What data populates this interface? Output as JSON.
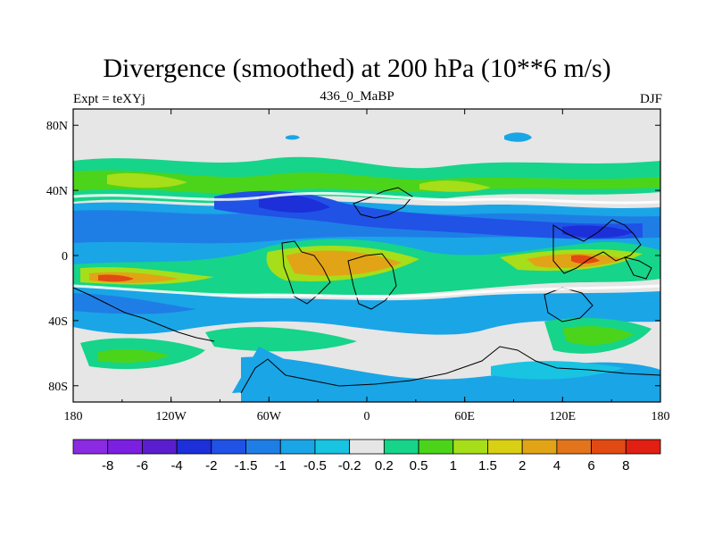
{
  "header": {
    "title": "Divergence (smoothed) at 200 hPa (10**6 m/s)",
    "left": "Expt = teXYj",
    "center": "436_0_MaBP",
    "right": "DJF"
  },
  "axes": {
    "x_ticks": [
      "180",
      "120W",
      "60W",
      "0",
      "60E",
      "120E",
      "180"
    ],
    "y_ticks": [
      "80N",
      "40N",
      "0",
      "40S",
      "80S"
    ]
  },
  "colorbar": {
    "colors": [
      "#8a2be2",
      "#7b1fe0",
      "#5a1ecf",
      "#1c2fd8",
      "#2052e6",
      "#1f7ee6",
      "#1aa5e6",
      "#19c3e2",
      "#e6e6e6",
      "#16d489",
      "#4cd41b",
      "#a6de19",
      "#d9cf13",
      "#e2a417",
      "#e2741c",
      "#e24a14",
      "#e11f12"
    ],
    "labels": [
      "-8",
      "-6",
      "-4",
      "-2",
      "-1.5",
      "-1",
      "-0.5",
      "-0.2",
      "0.2",
      "0.5",
      "1",
      "1.5",
      "2",
      "4",
      "6",
      "8"
    ]
  },
  "map_colors": {
    "background": "#e6e6e6",
    "strong_neg": "#1c2fd8",
    "neg": "#2052e6",
    "mid_neg": "#1f7ee6",
    "weak_neg": "#1aa5e6",
    "near_zero_neg": "#19c3e2",
    "weak_pos": "#16d489",
    "pos": "#4cd41b",
    "mid_pos": "#a6de19",
    "strong_pos": "#d9cf13",
    "orange": "#e2a417",
    "red_orange": "#e2741c",
    "red": "#e24a14"
  }
}
